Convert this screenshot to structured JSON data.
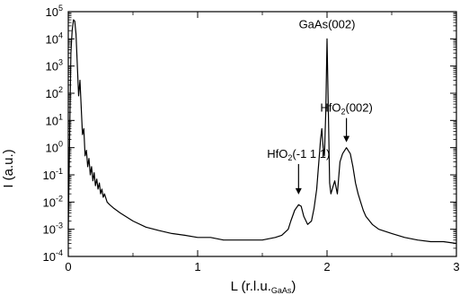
{
  "chart_data": {
    "type": "line",
    "xlabel": {
      "main": "L (r.l.u.",
      "sub": "GaAs",
      "close": ")"
    },
    "ylabel": "I (a.u.)",
    "xlim": [
      0,
      3
    ],
    "ylim_log10": [
      -4,
      5
    ],
    "y_scale": "log",
    "grid": false,
    "x_ticks": [
      {
        "value": 0,
        "label": "0"
      },
      {
        "value": 1,
        "label": "1"
      },
      {
        "value": 2,
        "label": "2"
      },
      {
        "value": 3,
        "label": "3"
      }
    ],
    "y_ticks": [
      {
        "exp": -4,
        "base": "10",
        "sup": "-4"
      },
      {
        "exp": -3,
        "base": "10",
        "sup": "-3"
      },
      {
        "exp": -2,
        "base": "10",
        "sup": "-2"
      },
      {
        "exp": -1,
        "base": "10",
        "sup": "-1"
      },
      {
        "exp": 0,
        "base": "10",
        "sup": "0"
      },
      {
        "exp": 1,
        "base": "10",
        "sup": "1"
      },
      {
        "exp": 2,
        "base": "10",
        "sup": "2"
      },
      {
        "exp": 3,
        "base": "10",
        "sup": "3"
      },
      {
        "exp": 4,
        "base": "10",
        "sup": "4"
      },
      {
        "exp": 5,
        "base": "10",
        "sup": "5"
      }
    ],
    "annotations": [
      {
        "text": "GaAs(002)",
        "x": 2.0,
        "y": 10000.0,
        "arrow": false
      },
      {
        "main": "HfO",
        "sub": "2",
        "rest": "(002)",
        "x": 2.15,
        "y": 1.0,
        "arrow": true
      },
      {
        "main": "HfO",
        "sub": "2",
        "rest": "(-1 1 1)",
        "x": 1.78,
        "y": 0.012,
        "arrow": true
      }
    ],
    "series": [
      {
        "x": [
          0.0,
          0.02,
          0.03,
          0.04,
          0.05,
          0.06,
          0.07,
          0.08,
          0.09,
          0.1,
          0.11,
          0.12,
          0.13,
          0.14,
          0.15,
          0.16,
          0.17,
          0.18,
          0.19,
          0.2,
          0.21,
          0.22,
          0.23,
          0.24,
          0.25,
          0.26,
          0.27,
          0.28,
          0.3,
          0.32,
          0.35,
          0.4,
          0.5,
          0.6,
          0.7,
          0.8,
          0.9,
          1.0,
          1.1,
          1.2,
          1.3,
          1.4,
          1.5,
          1.6,
          1.65,
          1.7,
          1.72,
          1.75,
          1.78,
          1.8,
          1.82,
          1.85,
          1.88,
          1.9,
          1.92,
          1.94,
          1.95,
          1.96,
          1.97,
          1.98,
          1.99,
          2.0,
          2.01,
          2.02,
          2.03,
          2.04,
          2.06,
          2.08,
          2.1,
          2.12,
          2.15,
          2.18,
          2.2,
          2.22,
          2.24,
          2.26,
          2.28,
          2.3,
          2.35,
          2.4,
          2.5,
          2.6,
          2.7,
          2.8,
          2.9,
          3.0
        ],
        "y": [
          0.001,
          3000,
          20000,
          50000,
          45000,
          15000,
          1000,
          80,
          300,
          30,
          3,
          5,
          0.5,
          0.8,
          0.2,
          0.4,
          0.1,
          0.2,
          0.06,
          0.12,
          0.04,
          0.07,
          0.03,
          0.05,
          0.02,
          0.03,
          0.015,
          0.02,
          0.01,
          0.008,
          0.006,
          0.004,
          0.002,
          0.0012,
          0.0009,
          0.0007,
          0.0006,
          0.0005,
          0.0005,
          0.0004,
          0.0004,
          0.0004,
          0.0004,
          0.0005,
          0.0006,
          0.001,
          0.002,
          0.005,
          0.008,
          0.007,
          0.003,
          0.0015,
          0.002,
          0.006,
          0.03,
          0.5,
          2,
          5,
          1,
          0.5,
          20,
          10000,
          30,
          0.05,
          0.02,
          0.03,
          0.06,
          0.02,
          0.3,
          0.6,
          1,
          0.6,
          0.2,
          0.05,
          0.02,
          0.01,
          0.005,
          0.003,
          0.0015,
          0.001,
          0.0007,
          0.0005,
          0.0004,
          0.00035,
          0.00035,
          0.0003
        ]
      }
    ]
  }
}
